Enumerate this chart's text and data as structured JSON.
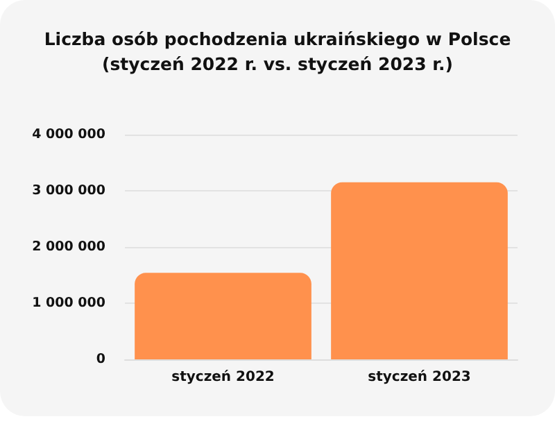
{
  "chart_data": {
    "type": "bar",
    "title": "Liczba osób pochodzenia ukraińskiego w Polsce\n(styczeń 2022 r. vs. styczeń 2023 r.)",
    "categories": [
      "styczeń 2022",
      "styczeń 2023"
    ],
    "values": [
      1540000,
      3150000
    ],
    "color": "#ff914d",
    "ylim": [
      0,
      4000000
    ],
    "yticks": [
      0,
      1000000,
      2000000,
      3000000,
      4000000
    ],
    "grid": "y"
  }
}
